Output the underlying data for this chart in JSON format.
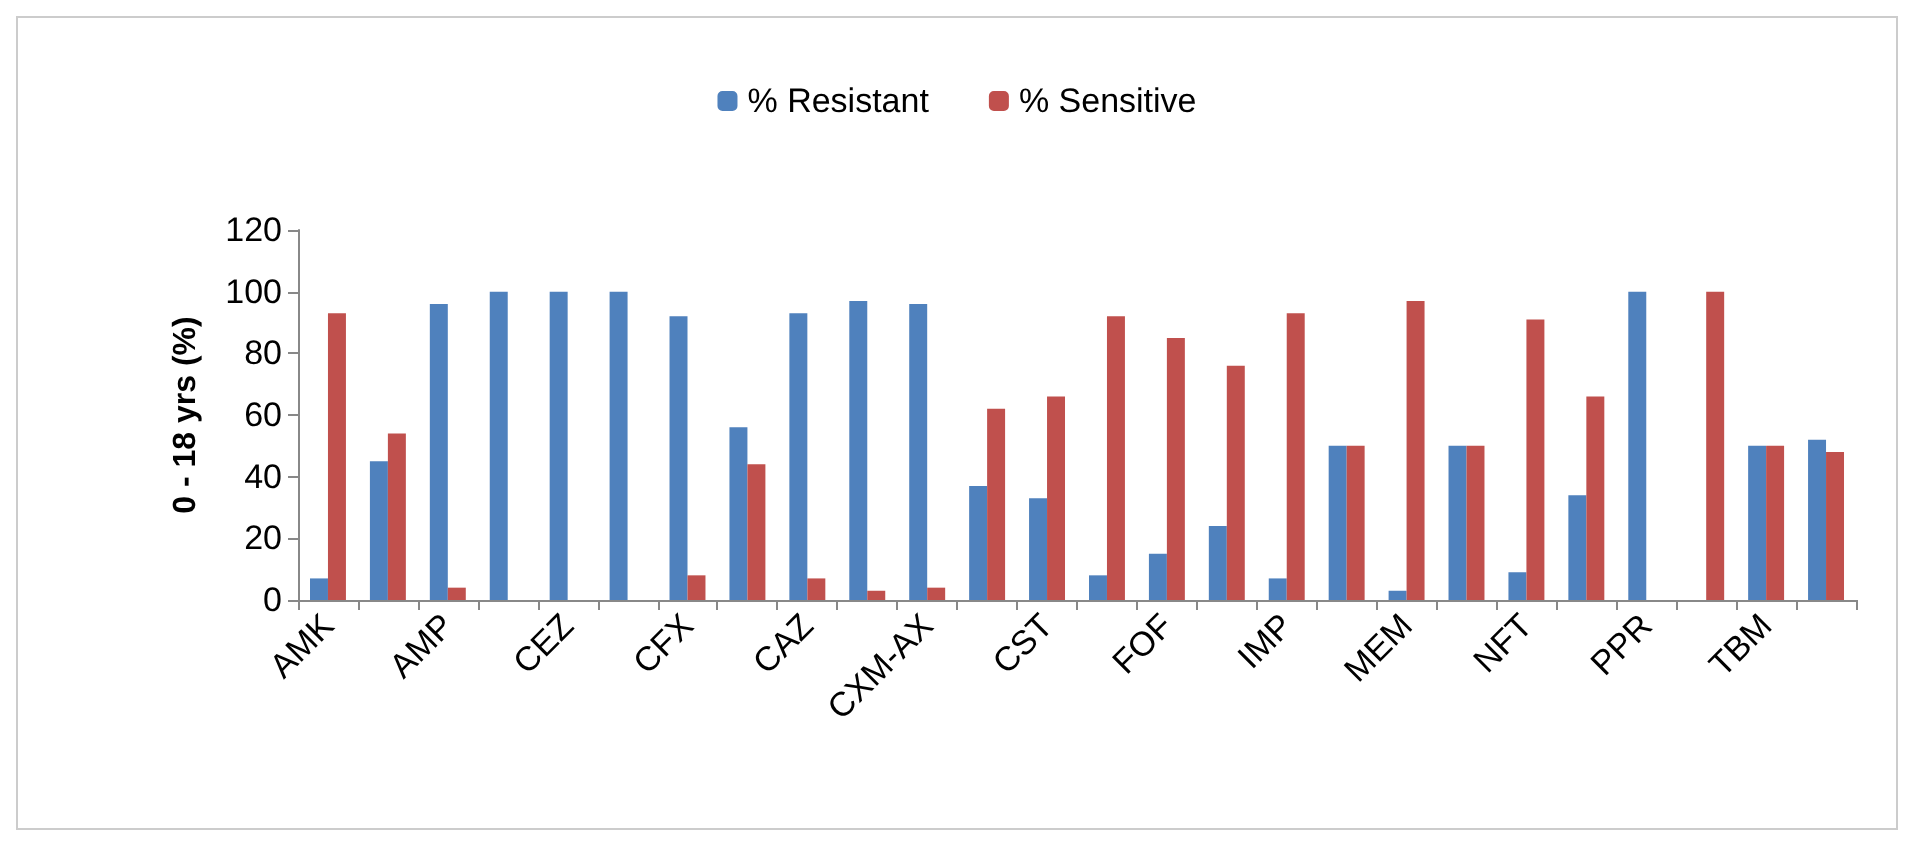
{
  "chart_data": {
    "type": "bar",
    "ylabel": "0 - 18 yrs (%)",
    "categories": [
      "AMK",
      null,
      "AMP",
      null,
      "CEZ",
      null,
      "CFX",
      null,
      "CAZ",
      null,
      "CXM-AX",
      null,
      "CST",
      null,
      "FOF",
      null,
      "IMP",
      null,
      "MEM",
      null,
      "NFT",
      null,
      "PPR",
      null,
      "TBM",
      null
    ],
    "series": [
      {
        "name": "% Resistant",
        "color": "#4f81bd",
        "values": [
          7,
          45,
          96,
          100,
          100,
          100,
          92,
          56,
          93,
          97,
          96,
          37,
          33,
          8,
          15,
          24,
          7,
          50,
          3,
          50,
          9,
          34,
          100,
          0,
          50,
          52
        ]
      },
      {
        "name": "% Sensitive",
        "color": "#c0504d",
        "values": [
          93,
          54,
          4,
          0,
          0,
          0,
          8,
          44,
          7,
          3,
          4,
          62,
          66,
          92,
          85,
          76,
          93,
          50,
          97,
          50,
          91,
          66,
          0,
          100,
          50,
          48
        ]
      }
    ],
    "ylim": [
      0,
      120
    ],
    "yticks": [
      0,
      20,
      40,
      60,
      80,
      100,
      120
    ],
    "grid": false,
    "legend": "top"
  }
}
